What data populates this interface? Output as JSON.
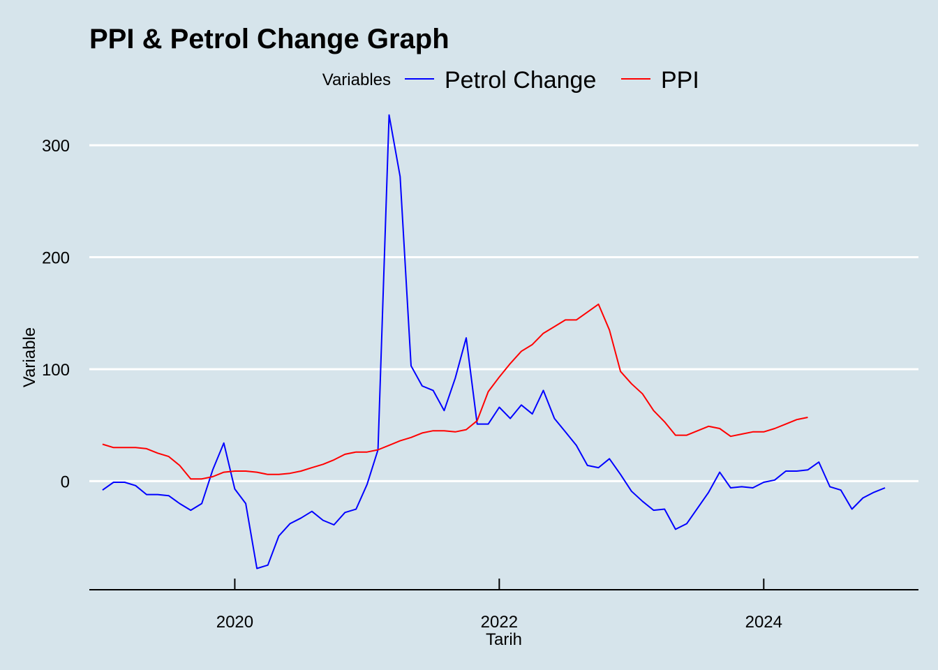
{
  "chart_data": {
    "type": "line",
    "title": "PPI & Petrol Change Graph",
    "xlabel": "Tarih",
    "ylabel": "Variable",
    "legend": {
      "title": "Variables",
      "position": "top"
    },
    "xlim": [
      2018.9,
      2025.17
    ],
    "ylim": [
      -97,
      330
    ],
    "x_ticks": [
      {
        "value": 2020,
        "label": "2020"
      },
      {
        "value": 2022,
        "label": "2022"
      },
      {
        "value": 2024,
        "label": "2024"
      }
    ],
    "y_ticks": [
      {
        "value": 0,
        "label": "0"
      },
      {
        "value": 100,
        "label": "100"
      },
      {
        "value": 200,
        "label": "200"
      },
      {
        "value": 300,
        "label": "300"
      }
    ],
    "grid": true,
    "series": [
      {
        "name": "Petrol Change",
        "color": "#0000ff",
        "x": [
          2019.0,
          2019.083,
          2019.167,
          2019.25,
          2019.333,
          2019.417,
          2019.5,
          2019.583,
          2019.667,
          2019.75,
          2019.833,
          2019.917,
          2020.0,
          2020.083,
          2020.167,
          2020.25,
          2020.333,
          2020.417,
          2020.5,
          2020.583,
          2020.667,
          2020.75,
          2020.833,
          2020.917,
          2021.0,
          2021.083,
          2021.167,
          2021.25,
          2021.333,
          2021.417,
          2021.5,
          2021.583,
          2021.667,
          2021.75,
          2021.833,
          2021.917,
          2022.0,
          2022.083,
          2022.167,
          2022.25,
          2022.333,
          2022.417,
          2022.5,
          2022.583,
          2022.667,
          2022.75,
          2022.833,
          2022.917,
          2023.0,
          2023.083,
          2023.167,
          2023.25,
          2023.333,
          2023.417,
          2023.5,
          2023.583,
          2023.667,
          2023.75,
          2023.833,
          2023.917,
          2024.0,
          2024.083,
          2024.167,
          2024.25,
          2024.333,
          2024.417,
          2024.5,
          2024.583,
          2024.667,
          2024.75,
          2024.833,
          2024.917
        ],
        "values": [
          -8,
          -1,
          -1,
          -4,
          -12,
          -12,
          -13,
          -20,
          -26,
          -20,
          10,
          34,
          -7,
          -20,
          -78,
          -75,
          -49,
          -38,
          -33,
          -27,
          -35,
          -39,
          -28,
          -25,
          -3,
          28,
          327,
          272,
          103,
          85,
          81,
          63,
          92,
          128,
          51,
          51,
          66,
          56,
          68,
          60,
          81,
          56,
          44,
          32,
          14,
          12,
          20,
          6,
          -9,
          -18,
          -26,
          -25,
          -43,
          -38,
          -24,
          -10,
          8,
          -6,
          -5,
          -6,
          -1,
          1,
          9,
          9,
          10,
          17,
          -5,
          -8,
          -25,
          -15,
          -10,
          -6
        ]
      },
      {
        "name": "PPI",
        "color": "#ff0000",
        "x": [
          2019.0,
          2019.083,
          2019.167,
          2019.25,
          2019.333,
          2019.417,
          2019.5,
          2019.583,
          2019.667,
          2019.75,
          2019.833,
          2019.917,
          2020.0,
          2020.083,
          2020.167,
          2020.25,
          2020.333,
          2020.417,
          2020.5,
          2020.583,
          2020.667,
          2020.75,
          2020.833,
          2020.917,
          2021.0,
          2021.083,
          2021.167,
          2021.25,
          2021.333,
          2021.417,
          2021.5,
          2021.583,
          2021.667,
          2021.75,
          2021.833,
          2021.917,
          2022.0,
          2022.083,
          2022.167,
          2022.25,
          2022.333,
          2022.417,
          2022.5,
          2022.583,
          2022.667,
          2022.75,
          2022.833,
          2022.917,
          2023.0,
          2023.083,
          2023.167,
          2023.25,
          2023.333,
          2023.417,
          2023.5,
          2023.583,
          2023.667,
          2023.75,
          2023.833,
          2023.917,
          2024.0,
          2024.083,
          2024.167,
          2024.25,
          2024.333
        ],
        "values": [
          33,
          30,
          30,
          30,
          29,
          25,
          22,
          14,
          2,
          2,
          4,
          8,
          9,
          9,
          8,
          6,
          6,
          7,
          9,
          12,
          15,
          19,
          24,
          26,
          26,
          28,
          32,
          36,
          39,
          43,
          45,
          45,
          44,
          46,
          54,
          80,
          93,
          105,
          116,
          122,
          132,
          138,
          144,
          144,
          151,
          158,
          135,
          98,
          87,
          78,
          63,
          53,
          41,
          41,
          45,
          49,
          47,
          40,
          42,
          44,
          44,
          47,
          51,
          55,
          57
        ]
      }
    ]
  }
}
